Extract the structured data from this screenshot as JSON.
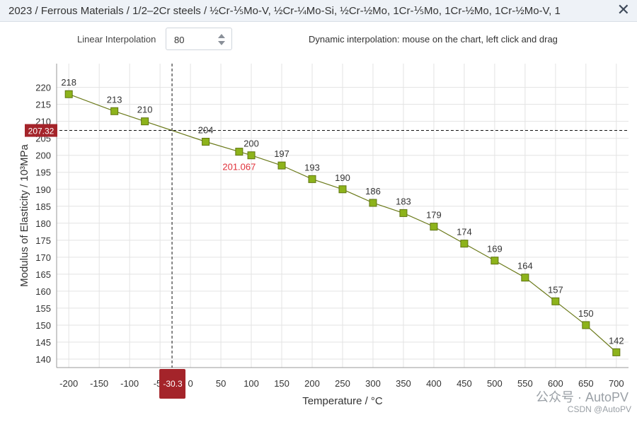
{
  "window": {
    "title": "2023 / Ferrous Materials / 1/2–2Cr steels / ½Cr-⅕Mo-V, ½Cr-¼Mo-Si, ½Cr-½Mo, 1Cr-⅕Mo, 1Cr-½Mo, 1Cr-½Mo-V, 1",
    "close_glyph": "✕"
  },
  "controls": {
    "interp_label": "Linear Interpolation",
    "interp_value": "80",
    "hint": "Dynamic interpolation: mouse on the chart, left click and drag"
  },
  "watermark": {
    "line1": "公众号 · AutoPV",
    "line2": "CSDN @AutoPV"
  },
  "chart_data": {
    "type": "line",
    "xlabel": "Temperature / °C",
    "ylabel": "Modulus of Elasticity / 10³MPa",
    "xlim": [
      -220,
      720
    ],
    "ylim": [
      137.5,
      227
    ],
    "x_ticks": [
      -200,
      -150,
      -100,
      -50,
      0,
      50,
      100,
      150,
      200,
      250,
      300,
      350,
      400,
      450,
      500,
      550,
      600,
      650,
      700
    ],
    "y_ticks": [
      140,
      145,
      150,
      155,
      160,
      165,
      170,
      175,
      180,
      185,
      190,
      195,
      200,
      205,
      210,
      215,
      220
    ],
    "grid": true,
    "series": [
      {
        "x": [
          -200,
          -125,
          -75,
          25,
          80,
          100,
          150,
          200,
          250,
          300,
          350,
          400,
          450,
          500,
          550,
          600,
          650,
          700
        ],
        "y": [
          218,
          213,
          210,
          204,
          201.067,
          200,
          197,
          193,
          190,
          186,
          183,
          179,
          174,
          169,
          164,
          157,
          150,
          142
        ],
        "labels": [
          "218",
          "213",
          "210",
          "204",
          "201.067",
          "200",
          "197",
          "193",
          "190",
          "186",
          "183",
          "179",
          "174",
          "169",
          "164",
          "157",
          "150",
          "142"
        ],
        "interpolated_index": 4
      }
    ],
    "crosshair": {
      "x": -30.3,
      "y": 207.32,
      "x_label": "-30.3",
      "y_label": "207.32"
    },
    "colors": {
      "line": "#6b7a1a",
      "marker_fill": "#8db31b",
      "marker_stroke": "#5f7510",
      "interp_label": "#e0303a",
      "crosshair_badge": "#a4242a",
      "grid": "#e3e3e3"
    }
  }
}
